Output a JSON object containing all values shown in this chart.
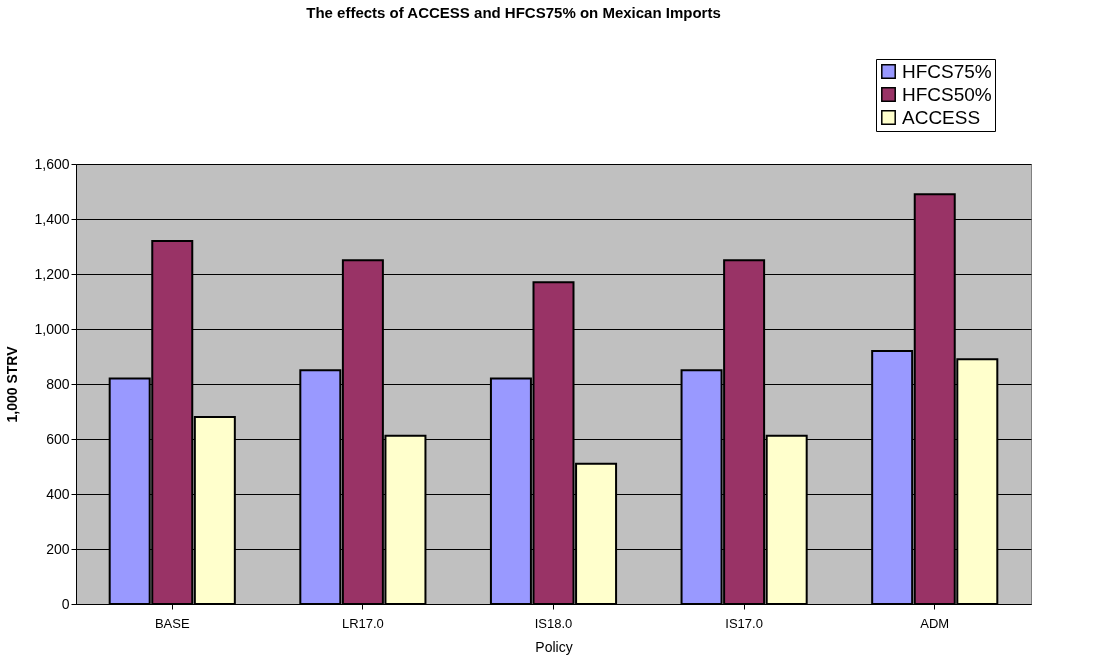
{
  "chart_data": {
    "type": "bar",
    "title": "The effects of ACCESS and HFCS75% on Mexican Imports",
    "xlabel": "Policy",
    "ylabel": "1,000 STRV",
    "categories": [
      "BASE",
      "LR17.0",
      "IS18.0",
      "IS17.0",
      "ADM"
    ],
    "series": [
      {
        "name": "HFCS75%",
        "color": "#9999ff",
        "values": [
          820,
          850,
          820,
          850,
          920
        ]
      },
      {
        "name": "HFCS50%",
        "color": "#993366",
        "values": [
          1320,
          1250,
          1170,
          1250,
          1490
        ]
      },
      {
        "name": "ACCESS",
        "color": "#ffffcc",
        "values": [
          680,
          612,
          510,
          612,
          890
        ]
      }
    ],
    "ylim": [
      0,
      1600
    ],
    "yticks": [
      {
        "value": 0,
        "label": "0"
      },
      {
        "value": 200,
        "label": "200"
      },
      {
        "value": 400,
        "label": "400"
      },
      {
        "value": 600,
        "label": "600"
      },
      {
        "value": 800,
        "label": "800"
      },
      {
        "value": 1000,
        "label": "1,000"
      },
      {
        "value": 1200,
        "label": "1,200"
      },
      {
        "value": 1400,
        "label": "1,400"
      },
      {
        "value": 1600,
        "label": "1,600"
      }
    ],
    "grid": "y",
    "legend": "top right"
  }
}
